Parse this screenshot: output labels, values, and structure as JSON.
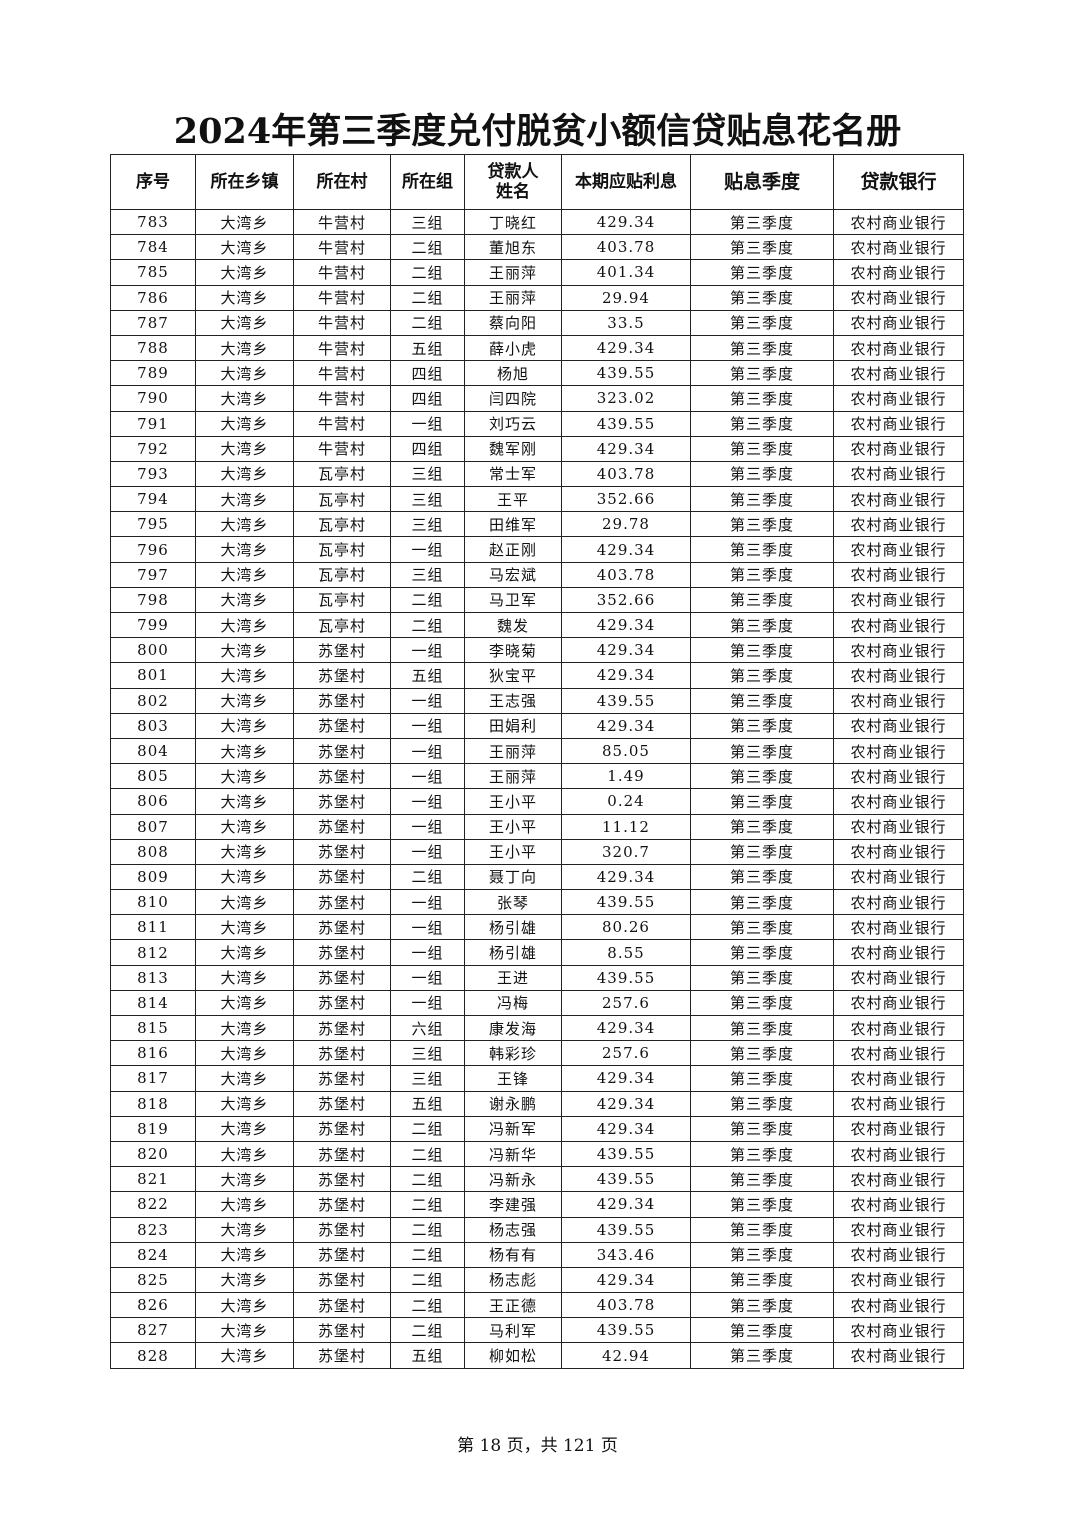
{
  "title": "2024年第三季度兑付脱贫小额信贷贴息花名册",
  "table": {
    "headers": [
      "序号",
      "所在乡镇",
      "所在村",
      "所在组",
      "贷款人\n姓名",
      "本期应贴利息",
      "贴息季度",
      "贷款银行"
    ],
    "rows": [
      [
        "783",
        "大湾乡",
        "牛营村",
        "三组",
        "丁晓红",
        "429.34",
        "第三季度",
        "农村商业银行"
      ],
      [
        "784",
        "大湾乡",
        "牛营村",
        "二组",
        "董旭东",
        "403.78",
        "第三季度",
        "农村商业银行"
      ],
      [
        "785",
        "大湾乡",
        "牛营村",
        "二组",
        "王丽萍",
        "401.34",
        "第三季度",
        "农村商业银行"
      ],
      [
        "786",
        "大湾乡",
        "牛营村",
        "二组",
        "王丽萍",
        "29.94",
        "第三季度",
        "农村商业银行"
      ],
      [
        "787",
        "大湾乡",
        "牛营村",
        "二组",
        "蔡向阳",
        "33.5",
        "第三季度",
        "农村商业银行"
      ],
      [
        "788",
        "大湾乡",
        "牛营村",
        "五组",
        "薛小虎",
        "429.34",
        "第三季度",
        "农村商业银行"
      ],
      [
        "789",
        "大湾乡",
        "牛营村",
        "四组",
        "杨旭",
        "439.55",
        "第三季度",
        "农村商业银行"
      ],
      [
        "790",
        "大湾乡",
        "牛营村",
        "四组",
        "闫四院",
        "323.02",
        "第三季度",
        "农村商业银行"
      ],
      [
        "791",
        "大湾乡",
        "牛营村",
        "一组",
        "刘巧云",
        "439.55",
        "第三季度",
        "农村商业银行"
      ],
      [
        "792",
        "大湾乡",
        "牛营村",
        "四组",
        "魏军刚",
        "429.34",
        "第三季度",
        "农村商业银行"
      ],
      [
        "793",
        "大湾乡",
        "瓦亭村",
        "三组",
        "常士军",
        "403.78",
        "第三季度",
        "农村商业银行"
      ],
      [
        "794",
        "大湾乡",
        "瓦亭村",
        "三组",
        "王平",
        "352.66",
        "第三季度",
        "农村商业银行"
      ],
      [
        "795",
        "大湾乡",
        "瓦亭村",
        "三组",
        "田维军",
        "29.78",
        "第三季度",
        "农村商业银行"
      ],
      [
        "796",
        "大湾乡",
        "瓦亭村",
        "一组",
        "赵正刚",
        "429.34",
        "第三季度",
        "农村商业银行"
      ],
      [
        "797",
        "大湾乡",
        "瓦亭村",
        "三组",
        "马宏斌",
        "403.78",
        "第三季度",
        "农村商业银行"
      ],
      [
        "798",
        "大湾乡",
        "瓦亭村",
        "二组",
        "马卫军",
        "352.66",
        "第三季度",
        "农村商业银行"
      ],
      [
        "799",
        "大湾乡",
        "瓦亭村",
        "二组",
        "魏发",
        "429.34",
        "第三季度",
        "农村商业银行"
      ],
      [
        "800",
        "大湾乡",
        "苏堡村",
        "一组",
        "李晓菊",
        "429.34",
        "第三季度",
        "农村商业银行"
      ],
      [
        "801",
        "大湾乡",
        "苏堡村",
        "五组",
        "狄宝平",
        "429.34",
        "第三季度",
        "农村商业银行"
      ],
      [
        "802",
        "大湾乡",
        "苏堡村",
        "一组",
        "王志强",
        "439.55",
        "第三季度",
        "农村商业银行"
      ],
      [
        "803",
        "大湾乡",
        "苏堡村",
        "一组",
        "田娟利",
        "429.34",
        "第三季度",
        "农村商业银行"
      ],
      [
        "804",
        "大湾乡",
        "苏堡村",
        "一组",
        "王丽萍",
        "85.05",
        "第三季度",
        "农村商业银行"
      ],
      [
        "805",
        "大湾乡",
        "苏堡村",
        "一组",
        "王丽萍",
        "1.49",
        "第三季度",
        "农村商业银行"
      ],
      [
        "806",
        "大湾乡",
        "苏堡村",
        "一组",
        "王小平",
        "0.24",
        "第三季度",
        "农村商业银行"
      ],
      [
        "807",
        "大湾乡",
        "苏堡村",
        "一组",
        "王小平",
        "11.12",
        "第三季度",
        "农村商业银行"
      ],
      [
        "808",
        "大湾乡",
        "苏堡村",
        "一组",
        "王小平",
        "320.7",
        "第三季度",
        "农村商业银行"
      ],
      [
        "809",
        "大湾乡",
        "苏堡村",
        "二组",
        "聂丁向",
        "429.34",
        "第三季度",
        "农村商业银行"
      ],
      [
        "810",
        "大湾乡",
        "苏堡村",
        "一组",
        "张琴",
        "439.55",
        "第三季度",
        "农村商业银行"
      ],
      [
        "811",
        "大湾乡",
        "苏堡村",
        "一组",
        "杨引雄",
        "80.26",
        "第三季度",
        "农村商业银行"
      ],
      [
        "812",
        "大湾乡",
        "苏堡村",
        "一组",
        "杨引雄",
        "8.55",
        "第三季度",
        "农村商业银行"
      ],
      [
        "813",
        "大湾乡",
        "苏堡村",
        "一组",
        "王进",
        "439.55",
        "第三季度",
        "农村商业银行"
      ],
      [
        "814",
        "大湾乡",
        "苏堡村",
        "一组",
        "冯梅",
        "257.6",
        "第三季度",
        "农村商业银行"
      ],
      [
        "815",
        "大湾乡",
        "苏堡村",
        "六组",
        "康发海",
        "429.34",
        "第三季度",
        "农村商业银行"
      ],
      [
        "816",
        "大湾乡",
        "苏堡村",
        "三组",
        "韩彩珍",
        "257.6",
        "第三季度",
        "农村商业银行"
      ],
      [
        "817",
        "大湾乡",
        "苏堡村",
        "三组",
        "王锋",
        "429.34",
        "第三季度",
        "农村商业银行"
      ],
      [
        "818",
        "大湾乡",
        "苏堡村",
        "五组",
        "谢永鹏",
        "429.34",
        "第三季度",
        "农村商业银行"
      ],
      [
        "819",
        "大湾乡",
        "苏堡村",
        "二组",
        "冯新军",
        "429.34",
        "第三季度",
        "农村商业银行"
      ],
      [
        "820",
        "大湾乡",
        "苏堡村",
        "二组",
        "冯新华",
        "439.55",
        "第三季度",
        "农村商业银行"
      ],
      [
        "821",
        "大湾乡",
        "苏堡村",
        "二组",
        "冯新永",
        "439.55",
        "第三季度",
        "农村商业银行"
      ],
      [
        "822",
        "大湾乡",
        "苏堡村",
        "二组",
        "李建强",
        "429.34",
        "第三季度",
        "农村商业银行"
      ],
      [
        "823",
        "大湾乡",
        "苏堡村",
        "二组",
        "杨志强",
        "439.55",
        "第三季度",
        "农村商业银行"
      ],
      [
        "824",
        "大湾乡",
        "苏堡村",
        "二组",
        "杨有有",
        "343.46",
        "第三季度",
        "农村商业银行"
      ],
      [
        "825",
        "大湾乡",
        "苏堡村",
        "二组",
        "杨志彪",
        "429.34",
        "第三季度",
        "农村商业银行"
      ],
      [
        "826",
        "大湾乡",
        "苏堡村",
        "二组",
        "王正德",
        "403.78",
        "第三季度",
        "农村商业银行"
      ],
      [
        "827",
        "大湾乡",
        "苏堡村",
        "二组",
        "马利军",
        "439.55",
        "第三季度",
        "农村商业银行"
      ],
      [
        "828",
        "大湾乡",
        "苏堡村",
        "五组",
        "柳如松",
        "42.94",
        "第三季度",
        "农村商业银行"
      ]
    ]
  },
  "footer": "第 18 页，共 121 页"
}
